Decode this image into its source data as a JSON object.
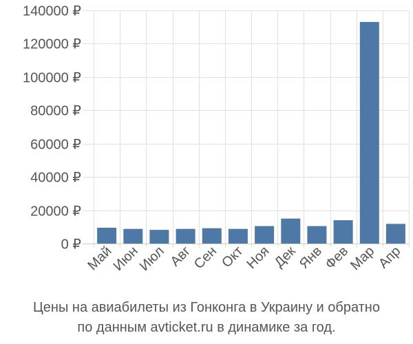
{
  "chart_data": {
    "type": "bar",
    "categories": [
      "Май",
      "Июн",
      "Июл",
      "Авг",
      "Сен",
      "Окт",
      "Ноя",
      "Дек",
      "Янв",
      "Фев",
      "Мар",
      "Апр"
    ],
    "values": [
      9500,
      8800,
      8200,
      8800,
      9200,
      8800,
      10500,
      15000,
      10500,
      14000,
      133000,
      11800
    ],
    "ylim": [
      0,
      140000
    ],
    "yticks": [
      0,
      20000,
      40000,
      60000,
      80000,
      100000,
      120000,
      140000
    ],
    "ytick_labels": [
      "0 ₽",
      "20000 ₽",
      "40000 ₽",
      "60000 ₽",
      "80000 ₽",
      "100000 ₽",
      "120000 ₽",
      "140000 ₽"
    ],
    "bar_color": "#4e79a7",
    "grid": true,
    "title": "",
    "xlabel": "",
    "ylabel": ""
  },
  "caption": {
    "line1": "Цены на авиабилеты из Гонконга в Украину и обратно",
    "line2": "по данным avticket.ru в динамике за год."
  }
}
